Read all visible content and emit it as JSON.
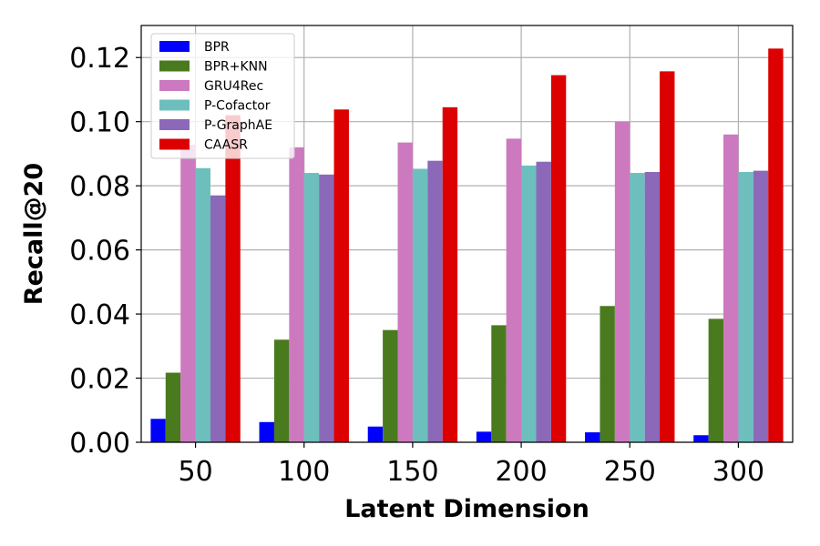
{
  "chart_data": {
    "type": "bar",
    "title": "",
    "xlabel": "Latent Dimension",
    "ylabel": "Recall@20",
    "categories": [
      "50",
      "100",
      "150",
      "200",
      "250",
      "300"
    ],
    "ylim": [
      0,
      0.13
    ],
    "yticks": [
      "0.00",
      "0.02",
      "0.04",
      "0.06",
      "0.08",
      "0.10",
      "0.12"
    ],
    "grid": true,
    "legend_position": "top-left",
    "series": [
      {
        "name": "BPR",
        "color": "#0000ff",
        "values": [
          0.0073,
          0.0063,
          0.0049,
          0.0033,
          0.0031,
          0.0022
        ]
      },
      {
        "name": "BPR+KNN",
        "color": "#4a7a1e",
        "values": [
          0.0217,
          0.032,
          0.035,
          0.0365,
          0.0425,
          0.0385
        ]
      },
      {
        "name": "GRU4Rec",
        "color": "#cc79bf",
        "values": [
          0.0928,
          0.092,
          0.0935,
          0.0947,
          0.1,
          0.096
        ]
      },
      {
        "name": "P-Cofactor",
        "color": "#6dbfbd",
        "values": [
          0.0855,
          0.084,
          0.0853,
          0.0863,
          0.084,
          0.0843
        ]
      },
      {
        "name": "P-GraphAE",
        "color": "#8b69b8",
        "values": [
          0.077,
          0.0835,
          0.0878,
          0.0875,
          0.0843,
          0.0847
        ]
      },
      {
        "name": "CAASR",
        "color": "#dd0000",
        "values": [
          0.102,
          0.1038,
          0.1045,
          0.1145,
          0.1157,
          0.1228
        ]
      }
    ]
  }
}
